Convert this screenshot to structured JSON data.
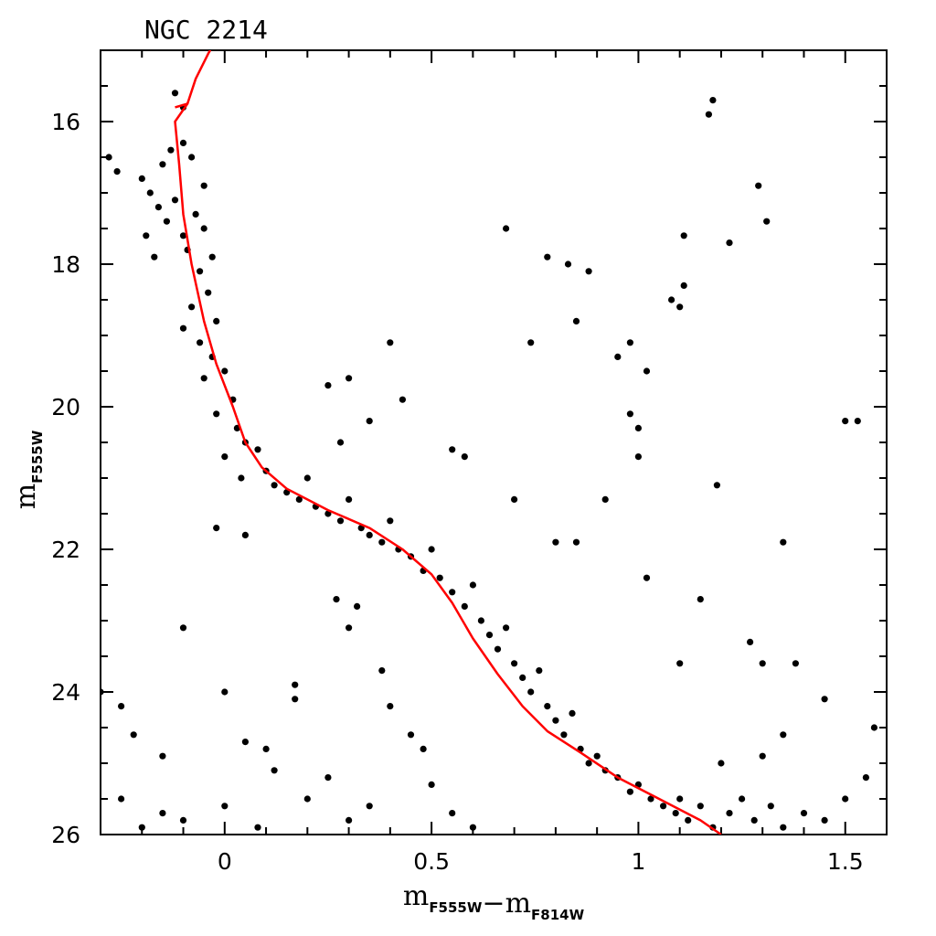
{
  "chart_data": {
    "type": "scatter",
    "title": "NGC 2214",
    "xlabel": {
      "parts": [
        {
          "text": "m",
          "sub": "F555W"
        },
        {
          "text": "−"
        },
        {
          "text": "m",
          "sub": "F814W"
        }
      ]
    },
    "ylabel": {
      "text": "m",
      "sub": "F555W"
    },
    "xlim": [
      -0.3,
      1.6
    ],
    "ylim": [
      26,
      15
    ],
    "y_inverted": true,
    "x_ticks": [
      0,
      0.5,
      1,
      1.5
    ],
    "x_tick_labels": [
      "0",
      "0.5",
      "1",
      "1.5"
    ],
    "x_minor_step": 0.1,
    "y_ticks": [
      16,
      18,
      20,
      22,
      24,
      26
    ],
    "y_tick_labels": [
      "16",
      "18",
      "20",
      "22",
      "24",
      "26"
    ],
    "y_minor_step": 0.5,
    "grid": false,
    "series": [
      {
        "type": "scatter",
        "color": "#000000",
        "note_points": "representative sample of the dense main-sequence star cloud plus scattered field stars",
        "points": [
          [
            -0.12,
            15.6
          ],
          [
            -0.1,
            15.8
          ],
          [
            1.18,
            15.7
          ],
          [
            1.17,
            15.9
          ],
          [
            -0.28,
            16.5
          ],
          [
            -0.26,
            16.7
          ],
          [
            -0.2,
            16.8
          ],
          [
            -0.15,
            16.6
          ],
          [
            -0.13,
            16.4
          ],
          [
            -0.1,
            16.3
          ],
          [
            -0.08,
            16.5
          ],
          [
            -0.05,
            16.9
          ],
          [
            -0.18,
            17.0
          ],
          [
            -0.16,
            17.2
          ],
          [
            -0.14,
            17.4
          ],
          [
            -0.12,
            17.1
          ],
          [
            -0.1,
            17.6
          ],
          [
            -0.07,
            17.3
          ],
          [
            -0.09,
            17.8
          ],
          [
            -0.17,
            17.9
          ],
          [
            -0.19,
            17.6
          ],
          [
            -0.05,
            17.5
          ],
          [
            -0.03,
            17.9
          ],
          [
            -0.06,
            18.1
          ],
          [
            -0.04,
            18.4
          ],
          [
            -0.08,
            18.6
          ],
          [
            -0.02,
            18.8
          ],
          [
            -0.1,
            18.9
          ],
          [
            -0.06,
            19.1
          ],
          [
            -0.03,
            19.3
          ],
          [
            0.0,
            19.5
          ],
          [
            -0.05,
            19.6
          ],
          [
            0.02,
            19.9
          ],
          [
            -0.02,
            20.1
          ],
          [
            0.03,
            20.3
          ],
          [
            0.05,
            20.5
          ],
          [
            0.0,
            20.7
          ],
          [
            0.08,
            20.6
          ],
          [
            0.1,
            20.9
          ],
          [
            0.04,
            21.0
          ],
          [
            0.12,
            21.1
          ],
          [
            0.15,
            21.2
          ],
          [
            0.18,
            21.3
          ],
          [
            0.2,
            21.0
          ],
          [
            0.22,
            21.4
          ],
          [
            0.25,
            21.5
          ],
          [
            0.28,
            21.6
          ],
          [
            0.3,
            21.3
          ],
          [
            0.33,
            21.7
          ],
          [
            0.35,
            21.8
          ],
          [
            0.38,
            21.9
          ],
          [
            0.4,
            21.6
          ],
          [
            0.42,
            22.0
          ],
          [
            0.45,
            22.1
          ],
          [
            0.48,
            22.3
          ],
          [
            0.5,
            22.0
          ],
          [
            0.52,
            22.4
          ],
          [
            0.55,
            22.6
          ],
          [
            0.58,
            22.8
          ],
          [
            0.6,
            22.5
          ],
          [
            0.62,
            23.0
          ],
          [
            0.64,
            23.2
          ],
          [
            0.66,
            23.4
          ],
          [
            0.68,
            23.1
          ],
          [
            0.7,
            23.6
          ],
          [
            0.72,
            23.8
          ],
          [
            0.74,
            24.0
          ],
          [
            0.76,
            23.7
          ],
          [
            0.78,
            24.2
          ],
          [
            0.8,
            24.4
          ],
          [
            0.82,
            24.6
          ],
          [
            0.84,
            24.3
          ],
          [
            0.86,
            24.8
          ],
          [
            0.88,
            25.0
          ],
          [
            0.9,
            24.9
          ],
          [
            0.92,
            25.1
          ],
          [
            0.95,
            25.2
          ],
          [
            0.98,
            25.4
          ],
          [
            1.0,
            25.3
          ],
          [
            1.03,
            25.5
          ],
          [
            1.06,
            25.6
          ],
          [
            1.09,
            25.7
          ],
          [
            1.12,
            25.8
          ],
          [
            1.15,
            25.6
          ],
          [
            1.18,
            25.9
          ],
          [
            1.22,
            25.7
          ],
          [
            1.25,
            25.5
          ],
          [
            1.28,
            25.8
          ],
          [
            1.32,
            25.6
          ],
          [
            1.35,
            25.9
          ],
          [
            1.4,
            25.7
          ],
          [
            1.45,
            25.8
          ],
          [
            1.5,
            25.5
          ],
          [
            1.55,
            25.2
          ],
          [
            1.57,
            24.5
          ],
          [
            1.5,
            20.2
          ],
          [
            1.53,
            20.2
          ],
          [
            0.55,
            20.6
          ],
          [
            0.58,
            20.7
          ],
          [
            0.43,
            19.9
          ],
          [
            0.4,
            19.1
          ],
          [
            0.68,
            17.5
          ],
          [
            0.78,
            17.9
          ],
          [
            0.83,
            18.0
          ],
          [
            0.88,
            18.1
          ],
          [
            0.74,
            19.1
          ],
          [
            0.85,
            18.8
          ],
          [
            0.95,
            19.3
          ],
          [
            0.98,
            19.1
          ],
          [
            1.02,
            19.5
          ],
          [
            1.08,
            18.5
          ],
          [
            1.1,
            18.6
          ],
          [
            1.11,
            18.3
          ],
          [
            1.11,
            17.6
          ],
          [
            1.22,
            17.7
          ],
          [
            1.29,
            16.9
          ],
          [
            1.31,
            17.4
          ],
          [
            0.98,
            20.1
          ],
          [
            1.0,
            20.3
          ],
          [
            1.0,
            20.7
          ],
          [
            0.92,
            21.3
          ],
          [
            0.7,
            21.3
          ],
          [
            1.19,
            21.1
          ],
          [
            0.8,
            21.9
          ],
          [
            0.85,
            21.9
          ],
          [
            1.35,
            21.9
          ],
          [
            1.02,
            22.4
          ],
          [
            1.15,
            22.7
          ],
          [
            1.27,
            23.3
          ],
          [
            1.3,
            23.6
          ],
          [
            1.38,
            23.6
          ],
          [
            1.1,
            23.6
          ],
          [
            1.45,
            24.1
          ],
          [
            -0.3,
            24.0
          ],
          [
            -0.25,
            24.2
          ],
          [
            -0.22,
            24.6
          ],
          [
            -0.1,
            23.1
          ],
          [
            -0.15,
            24.9
          ],
          [
            0.0,
            24.0
          ],
          [
            0.05,
            24.7
          ],
          [
            0.1,
            24.8
          ],
          [
            0.17,
            23.9
          ],
          [
            0.17,
            24.1
          ],
          [
            0.12,
            25.1
          ],
          [
            0.2,
            25.5
          ],
          [
            0.25,
            25.2
          ],
          [
            -0.25,
            25.5
          ],
          [
            -0.2,
            25.9
          ],
          [
            -0.15,
            25.7
          ],
          [
            -0.1,
            25.8
          ],
          [
            0.0,
            25.6
          ],
          [
            0.08,
            25.9
          ],
          [
            0.3,
            25.8
          ],
          [
            0.35,
            25.6
          ],
          [
            0.27,
            22.7
          ],
          [
            0.32,
            22.8
          ],
          [
            0.3,
            23.1
          ],
          [
            0.38,
            23.7
          ],
          [
            0.4,
            24.2
          ],
          [
            0.45,
            24.6
          ],
          [
            0.48,
            24.8
          ],
          [
            0.5,
            25.3
          ],
          [
            0.55,
            25.7
          ],
          [
            0.6,
            25.9
          ],
          [
            1.1,
            25.5
          ],
          [
            1.2,
            25.0
          ],
          [
            1.3,
            24.9
          ],
          [
            1.35,
            24.6
          ],
          [
            0.3,
            19.6
          ],
          [
            0.25,
            19.7
          ],
          [
            0.35,
            20.2
          ],
          [
            0.28,
            20.5
          ],
          [
            -0.02,
            21.7
          ],
          [
            0.05,
            21.8
          ]
        ]
      },
      {
        "type": "line",
        "color": "#ff0000",
        "note_points": "isochrone fit (red curve)",
        "points": [
          [
            -0.12,
            15.8
          ],
          [
            -0.09,
            15.75
          ],
          [
            -0.12,
            16.0
          ],
          [
            -0.11,
            16.6
          ],
          [
            -0.1,
            17.3
          ],
          [
            -0.08,
            18.0
          ],
          [
            -0.05,
            18.8
          ],
          [
            -0.02,
            19.4
          ],
          [
            0.02,
            20.0
          ],
          [
            0.05,
            20.5
          ],
          [
            0.09,
            20.85
          ],
          [
            0.15,
            21.15
          ],
          [
            0.25,
            21.45
          ],
          [
            0.35,
            21.7
          ],
          [
            0.43,
            22.0
          ],
          [
            0.5,
            22.35
          ],
          [
            0.55,
            22.75
          ],
          [
            0.6,
            23.25
          ],
          [
            0.66,
            23.75
          ],
          [
            0.72,
            24.2
          ],
          [
            0.78,
            24.55
          ],
          [
            0.86,
            24.85
          ],
          [
            0.95,
            25.2
          ],
          [
            1.05,
            25.5
          ],
          [
            1.15,
            25.8
          ],
          [
            1.2,
            26.0
          ]
        ]
      },
      {
        "type": "line",
        "color": "#ff0000",
        "note_points": "upper branch of the isochrone near the top of the plot",
        "points": [
          [
            -0.09,
            15.75
          ],
          [
            -0.07,
            15.4
          ],
          [
            -0.04,
            15.05
          ],
          [
            -0.03,
            14.95
          ]
        ]
      }
    ]
  }
}
